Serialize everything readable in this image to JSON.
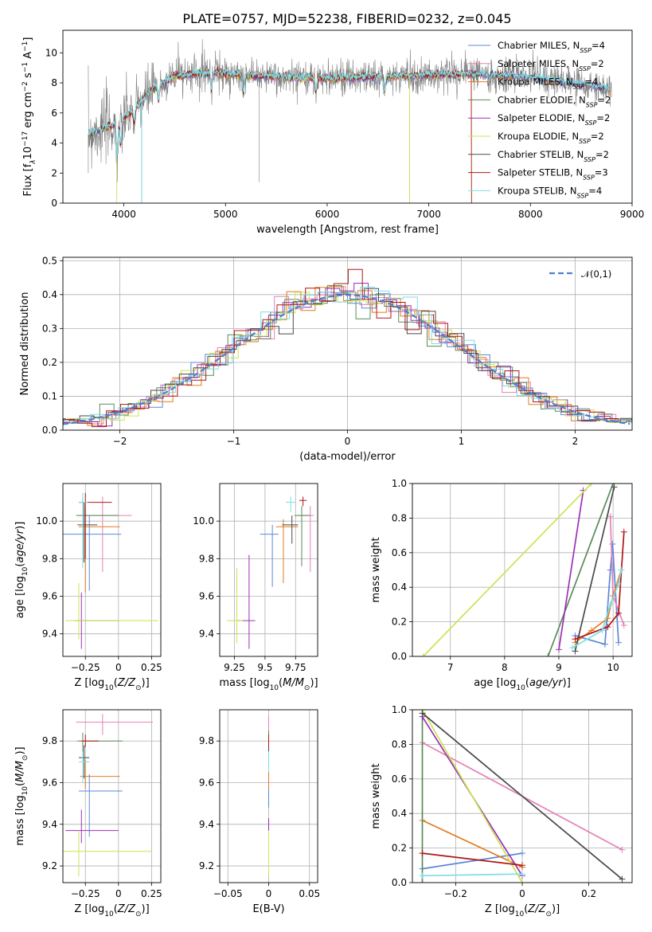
{
  "figure_title": "PLATE=0757, MJD=52238, FIBERID=0232, z=0.045",
  "models": [
    {
      "label": "Chabrier MILES, N",
      "sub": "SSP",
      "tail": "=4",
      "color": "#5b87d9"
    },
    {
      "label": "Salpeter MILES, N",
      "sub": "SSP",
      "tail": "=2",
      "color": "#e582b8"
    },
    {
      "label": "Kroupa MILES, N",
      "sub": "SSP",
      "tail": "=4",
      "color": "#e07b20"
    },
    {
      "label": "Chabrier ELODIE, N",
      "sub": "SSP",
      "tail": "=2",
      "color": "#5a8a5a"
    },
    {
      "label": "Salpeter ELODIE, N",
      "sub": "SSP",
      "tail": "=2",
      "color": "#9b30b5"
    },
    {
      "label": "Kroupa ELODIE, N",
      "sub": "SSP",
      "tail": "=2",
      "color": "#c8e552"
    },
    {
      "label": "Chabrier STELIB, N",
      "sub": "SSP",
      "tail": "=2",
      "color": "#4a4a4a"
    },
    {
      "label": "Salpeter STELIB, N",
      "sub": "SSP",
      "tail": "=3",
      "color": "#b01717"
    },
    {
      "label": "Kroupa STELIB, N",
      "sub": "SSP",
      "tail": "=4",
      "color": "#7fdde5"
    }
  ],
  "chart_data": [
    {
      "id": "spectrum",
      "type": "line",
      "xlabel": "wavelength [Angstrom, rest frame]",
      "ylabel_parts": [
        "Flux [f",
        "λ",
        "10",
        "−17",
        " erg cm",
        "−2",
        " s",
        "−1",
        " A",
        "−1",
        "]"
      ],
      "xlim": [
        3400,
        9000
      ],
      "ylim": [
        0,
        11.5
      ],
      "xticks": [
        4000,
        5000,
        6000,
        7000,
        8000,
        9000
      ],
      "yticks": [
        0,
        2,
        4,
        6,
        8,
        10
      ],
      "data_color": "#808080",
      "data_range": [
        3650,
        8800
      ],
      "continuum": [
        [
          3650,
          4.6
        ],
        [
          3900,
          5.2
        ],
        [
          4000,
          5.6
        ],
        [
          4150,
          6.6
        ],
        [
          4300,
          7.7
        ],
        [
          4500,
          8.4
        ],
        [
          4800,
          8.7
        ],
        [
          5200,
          8.5
        ],
        [
          5500,
          8.4
        ],
        [
          6000,
          8.3
        ],
        [
          6500,
          8.4
        ],
        [
          7000,
          8.5
        ],
        [
          7400,
          8.6
        ],
        [
          7800,
          8.5
        ],
        [
          8200,
          8.2
        ],
        [
          8800,
          7.6
        ]
      ],
      "dips": [
        [
          3934,
          2.2
        ],
        [
          3968,
          1.6
        ],
        [
          4102,
          1.0
        ],
        [
          4340,
          1.0
        ],
        [
          4861,
          1.1
        ],
        [
          5175,
          1.3
        ],
        [
          5890,
          0.9
        ],
        [
          6563,
          1.1
        ],
        [
          7590,
          0.6
        ]
      ],
      "spikes": [
        [
          4175,
          0
        ],
        [
          3660,
          4.8
        ],
        [
          3930,
          0.4
        ],
        [
          5330,
          1.4
        ],
        [
          6810,
          0
        ],
        [
          7420,
          0
        ],
        [
          3650,
          2.0
        ]
      ],
      "legend_position": "top-right"
    },
    {
      "id": "residuals",
      "type": "histogram",
      "xlabel": "(data-model)/error",
      "ylabel": "Normed distribution",
      "xlim": [
        -2.5,
        2.5
      ],
      "ylim": [
        0,
        0.51
      ],
      "xticks": [
        -2,
        -1,
        0,
        1,
        2
      ],
      "yticks": [
        0.0,
        0.1,
        0.2,
        0.3,
        0.4,
        0.5
      ],
      "bin_width": 0.125,
      "grid": true,
      "reference": {
        "label": "𝒩(0,1)",
        "color": "#4f7fd0",
        "style": "dashed"
      },
      "legend_position": "top-right"
    },
    {
      "id": "age-vs-Z",
      "type": "errorbar",
      "xlabel": "Z [log10(Z/Z⊙)]",
      "ylabel": "age [log10(age/yr)]",
      "xlim": [
        -0.42,
        0.32
      ],
      "ylim": [
        9.28,
        10.2
      ],
      "xticks": [
        -0.25,
        0.0,
        0.25
      ],
      "yticks": [
        9.4,
        9.6,
        9.8,
        10.0
      ],
      "points": [
        {
          "model": 0,
          "x": -0.22,
          "y": 9.93,
          "xerr": [
            0.2,
            0.24
          ],
          "yerr": [
            0.3,
            0.1
          ]
        },
        {
          "model": 1,
          "x": -0.12,
          "y": 10.03,
          "xerr": [
            0.18,
            0.22
          ],
          "yerr": [
            0.3,
            0.1
          ]
        },
        {
          "model": 2,
          "x": -0.25,
          "y": 9.97,
          "xerr": [
            0.05,
            0.26
          ],
          "yerr": [
            0.35,
            0.1
          ]
        },
        {
          "model": 3,
          "x": -0.27,
          "y": 10.03,
          "xerr": [
            0.05,
            0.27
          ],
          "yerr": [
            0.25,
            0.1
          ]
        },
        {
          "model": 4,
          "x": -0.28,
          "y": 9.47,
          "xerr": [
            0.05,
            0.28
          ],
          "yerr": [
            0.15,
            0.15
          ]
        },
        {
          "model": 5,
          "x": -0.3,
          "y": 9.47,
          "xerr": [
            0.1,
            0.6
          ],
          "yerr": [
            0.1,
            0.2
          ]
        },
        {
          "model": 6,
          "x": -0.26,
          "y": 9.98,
          "xerr": [
            0.05,
            0.1
          ],
          "yerr": [
            0.2,
            0.12
          ]
        },
        {
          "model": 7,
          "x": -0.25,
          "y": 10.1,
          "xerr": [
            0.05,
            0.2
          ],
          "yerr": [
            0.3,
            0.05
          ]
        },
        {
          "model": 8,
          "x": -0.27,
          "y": 10.1,
          "xerr": [
            0.03,
            0.04
          ],
          "yerr": [
            0.35,
            0.05
          ]
        }
      ]
    },
    {
      "id": "age-vs-mass",
      "type": "errorbar",
      "xlabel": "mass [log10(M/M⊙)]",
      "xlim": [
        9.13,
        9.93
      ],
      "ylim": [
        9.28,
        10.2
      ],
      "xticks": [
        9.25,
        9.5,
        9.75
      ],
      "yticks": [
        9.4,
        9.6,
        9.8,
        10.0
      ],
      "points": [
        {
          "model": 0,
          "x": 9.56,
          "y": 9.93,
          "xerr": [
            0.1,
            0.05
          ],
          "yerr": [
            0.28,
            0.05
          ]
        },
        {
          "model": 1,
          "x": 9.87,
          "y": 10.03,
          "xerr": [
            0.1,
            0.03
          ],
          "yerr": [
            0.3,
            0.05
          ]
        },
        {
          "model": 2,
          "x": 9.65,
          "y": 9.97,
          "xerr": [
            0.06,
            0.12
          ],
          "yerr": [
            0.3,
            0.04
          ]
        },
        {
          "model": 3,
          "x": 9.8,
          "y": 10.03,
          "xerr": [
            0.06,
            0.07
          ],
          "yerr": [
            0.27,
            0.05
          ]
        },
        {
          "model": 4,
          "x": 9.37,
          "y": 9.47,
          "xerr": [
            0.1,
            0.05
          ],
          "yerr": [
            0.15,
            0.35
          ]
        },
        {
          "model": 5,
          "x": 9.27,
          "y": 9.47,
          "xerr": [
            0.08,
            0.05
          ],
          "yerr": [
            0.12,
            0.28
          ]
        },
        {
          "model": 6,
          "x": 9.72,
          "y": 9.98,
          "xerr": [
            0.08,
            0.05
          ],
          "yerr": [
            0.1,
            0.05
          ]
        },
        {
          "model": 7,
          "x": 9.81,
          "y": 10.11,
          "xerr": [
            0.03,
            0.03
          ],
          "yerr": [
            0.03,
            0.02
          ]
        },
        {
          "model": 8,
          "x": 9.71,
          "y": 10.1,
          "xerr": [
            0.04,
            0.04
          ],
          "yerr": [
            0.05,
            0.03
          ]
        }
      ]
    },
    {
      "id": "weight-vs-age",
      "type": "line",
      "xlabel": "age [log10(age/yr)]",
      "ylabel": "mass weight",
      "xlim": [
        6.3,
        10.35
      ],
      "ylim": [
        0,
        1
      ],
      "xticks": [
        7,
        8,
        9,
        10
      ],
      "yticks": [
        0.0,
        0.2,
        0.4,
        0.6,
        0.8,
        1.0
      ],
      "series": [
        {
          "model": 0,
          "points": [
            [
              9.3,
              0.12
            ],
            [
              9.85,
              0.07
            ],
            [
              9.95,
              0.5
            ],
            [
              9.99,
              0.65
            ],
            [
              10.1,
              0.08
            ]
          ]
        },
        {
          "model": 1,
          "points": [
            [
              9.95,
              0.81
            ],
            [
              10.0,
              0.35
            ],
            [
              10.2,
              0.18
            ]
          ]
        },
        {
          "model": 2,
          "points": [
            [
              9.3,
              0.08
            ],
            [
              9.6,
              0.15
            ],
            [
              9.9,
              0.22
            ],
            [
              10.0,
              0.35
            ],
            [
              10.15,
              0.5
            ]
          ]
        },
        {
          "model": 3,
          "points": [
            [
              8.8,
              0.0
            ],
            [
              10.0,
              1.0
            ]
          ]
        },
        {
          "model": 4,
          "points": [
            [
              9.0,
              0.04
            ],
            [
              9.45,
              0.96
            ]
          ]
        },
        {
          "model": 5,
          "points": [
            [
              6.5,
              0.0
            ],
            [
              9.6,
              1.0
            ]
          ]
        },
        {
          "model": 6,
          "points": [
            [
              9.3,
              0.03
            ],
            [
              10.02,
              0.98
            ]
          ]
        },
        {
          "model": 7,
          "points": [
            [
              9.3,
              0.1
            ],
            [
              9.9,
              0.17
            ],
            [
              10.1,
              0.25
            ],
            [
              10.2,
              0.72
            ]
          ]
        },
        {
          "model": 8,
          "points": [
            [
              9.25,
              0.05
            ],
            [
              9.8,
              0.15
            ],
            [
              9.95,
              0.3
            ],
            [
              10.1,
              0.42
            ],
            [
              10.15,
              0.5
            ]
          ]
        }
      ]
    },
    {
      "id": "mass-vs-Z",
      "type": "errorbar",
      "xlabel": "Z [log10(Z/Z⊙)]",
      "ylabel": "mass [log10(M/M⊙)]",
      "xlim": [
        -0.42,
        0.32
      ],
      "ylim": [
        9.12,
        9.95
      ],
      "xticks": [
        -0.25,
        0.0,
        0.25
      ],
      "yticks": [
        9.2,
        9.4,
        9.6,
        9.8
      ],
      "points": [
        {
          "model": 0,
          "x": -0.22,
          "y": 9.56,
          "xerr": [
            0.08,
            0.25
          ],
          "yerr": [
            0.22,
            0.08
          ]
        },
        {
          "model": 1,
          "x": -0.12,
          "y": 9.89,
          "xerr": [
            0.2,
            0.38
          ],
          "yerr": [
            0.06,
            0.04
          ]
        },
        {
          "model": 2,
          "x": -0.25,
          "y": 9.63,
          "xerr": [
            0.04,
            0.26
          ],
          "yerr": [
            0.06,
            0.08
          ]
        },
        {
          "model": 3,
          "x": -0.27,
          "y": 9.8,
          "xerr": [
            0.04,
            0.3
          ],
          "yerr": [
            0.07,
            0.04
          ]
        },
        {
          "model": 4,
          "x": -0.28,
          "y": 9.37,
          "xerr": [
            0.12,
            0.28
          ],
          "yerr": [
            0.06,
            0.1
          ]
        },
        {
          "model": 5,
          "x": -0.3,
          "y": 9.27,
          "xerr": [
            0.12,
            0.55
          ],
          "yerr": [
            0.12,
            0.1
          ]
        },
        {
          "model": 6,
          "x": -0.26,
          "y": 9.72,
          "xerr": [
            0.04,
            0.04
          ],
          "yerr": [
            0.1,
            0.06
          ]
        },
        {
          "model": 7,
          "x": -0.25,
          "y": 9.8,
          "xerr": [
            0.03,
            0.1
          ],
          "yerr": [
            0.03,
            0.03
          ]
        },
        {
          "model": 8,
          "x": -0.27,
          "y": 9.7,
          "xerr": [
            0.03,
            0.05
          ],
          "yerr": [
            0.1,
            0.05
          ]
        }
      ]
    },
    {
      "id": "mass-vs-EBV",
      "type": "errorbar",
      "xlabel": "E(B-V)",
      "xlim": [
        -0.06,
        0.06
      ],
      "ylim": [
        9.12,
        9.95
      ],
      "xticks": [
        -0.05,
        0.0,
        0.05
      ],
      "yticks": [
        9.2,
        9.4,
        9.6,
        9.8
      ],
      "points": [
        {
          "model": 0,
          "x": 0.0,
          "y": 9.56,
          "xerr": [
            0.0,
            0.0
          ],
          "yerr": [
            0.08,
            0.06
          ]
        },
        {
          "model": 1,
          "x": 0.0,
          "y": 9.89,
          "xerr": [
            0.0,
            0.0
          ],
          "yerr": [
            0.04,
            0.03
          ]
        },
        {
          "model": 2,
          "x": 0.0,
          "y": 9.63,
          "xerr": [
            0.0,
            0.0
          ],
          "yerr": [
            0.06,
            0.06
          ]
        },
        {
          "model": 3,
          "x": 0.0,
          "y": 9.8,
          "xerr": [
            0.0,
            0.0
          ],
          "yerr": [
            0.05,
            0.05
          ]
        },
        {
          "model": 4,
          "x": 0.0,
          "y": 9.37,
          "xerr": [
            0.0,
            0.0
          ],
          "yerr": [
            0.06,
            0.06
          ]
        },
        {
          "model": 5,
          "x": 0.0,
          "y": 9.27,
          "xerr": [
            0.0,
            0.0
          ],
          "yerr": [
            0.12,
            0.1
          ]
        },
        {
          "model": 6,
          "x": 0.0,
          "y": 9.72,
          "xerr": [
            0.0,
            0.0
          ],
          "yerr": [
            0.05,
            0.05
          ]
        },
        {
          "model": 7,
          "x": 0.0,
          "y": 9.8,
          "xerr": [
            0.0,
            0.0
          ],
          "yerr": [
            0.03,
            0.03
          ]
        },
        {
          "model": 8,
          "x": 0.0,
          "y": 9.7,
          "xerr": [
            0.0,
            0.0
          ],
          "yerr": [
            0.05,
            0.05
          ]
        }
      ]
    },
    {
      "id": "weight-vs-Z",
      "type": "line",
      "xlabel": "Z [log10(Z/Z⊙)]",
      "ylabel": "mass weight",
      "xlim": [
        -0.33,
        0.33
      ],
      "ylim": [
        0,
        1
      ],
      "xticks": [
        -0.2,
        0.0,
        0.2
      ],
      "yticks": [
        0.0,
        0.2,
        0.4,
        0.6,
        0.8,
        1.0
      ],
      "series": [
        {
          "model": 0,
          "points": [
            [
              -0.3,
              0.08
            ],
            [
              0.0,
              0.17
            ]
          ]
        },
        {
          "model": 1,
          "points": [
            [
              -0.3,
              0.81
            ],
            [
              0.3,
              0.19
            ]
          ]
        },
        {
          "model": 2,
          "points": [
            [
              -0.3,
              0.36
            ],
            [
              0.0,
              0.09
            ]
          ]
        },
        {
          "model": 3,
          "points": [
            [
              -0.3,
              0.0
            ],
            [
              -0.3,
              1.0
            ]
          ]
        },
        {
          "model": 4,
          "points": [
            [
              -0.3,
              0.96
            ],
            [
              0.0,
              0.04
            ]
          ]
        },
        {
          "model": 5,
          "points": [
            [
              -0.3,
              1.0
            ],
            [
              0.0,
              0.0
            ]
          ]
        },
        {
          "model": 6,
          "points": [
            [
              -0.3,
              0.98
            ],
            [
              0.3,
              0.02
            ]
          ]
        },
        {
          "model": 7,
          "points": [
            [
              -0.3,
              0.17
            ],
            [
              0.0,
              0.1
            ]
          ]
        },
        {
          "model": 8,
          "points": [
            [
              -0.3,
              0.04
            ],
            [
              0.0,
              0.05
            ]
          ]
        }
      ]
    }
  ]
}
